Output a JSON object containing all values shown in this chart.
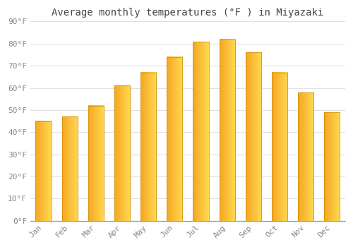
{
  "title": "Average monthly temperatures (°F ) in Miyazaki",
  "months": [
    "Jan",
    "Feb",
    "Mar",
    "Apr",
    "May",
    "Jun",
    "Jul",
    "Aug",
    "Sep",
    "Oct",
    "Nov",
    "Dec"
  ],
  "values": [
    45,
    47,
    52,
    61,
    67,
    74,
    81,
    82,
    76,
    67,
    58,
    49
  ],
  "bar_color_main": "#FFA500",
  "bar_color_light": "#FFD050",
  "bar_edge_color": "#CC8800",
  "background_color": "#FFFFFF",
  "grid_color": "#E0E0E0",
  "ylim": [
    0,
    90
  ],
  "yticks": [
    0,
    10,
    20,
    30,
    40,
    50,
    60,
    70,
    80,
    90
  ],
  "ytick_labels": [
    "0°F",
    "10°F",
    "20°F",
    "30°F",
    "40°F",
    "50°F",
    "60°F",
    "70°F",
    "80°F",
    "90°F"
  ],
  "title_fontsize": 10,
  "tick_fontsize": 8,
  "title_color": "#444444",
  "tick_color": "#888888",
  "bar_width": 0.6
}
